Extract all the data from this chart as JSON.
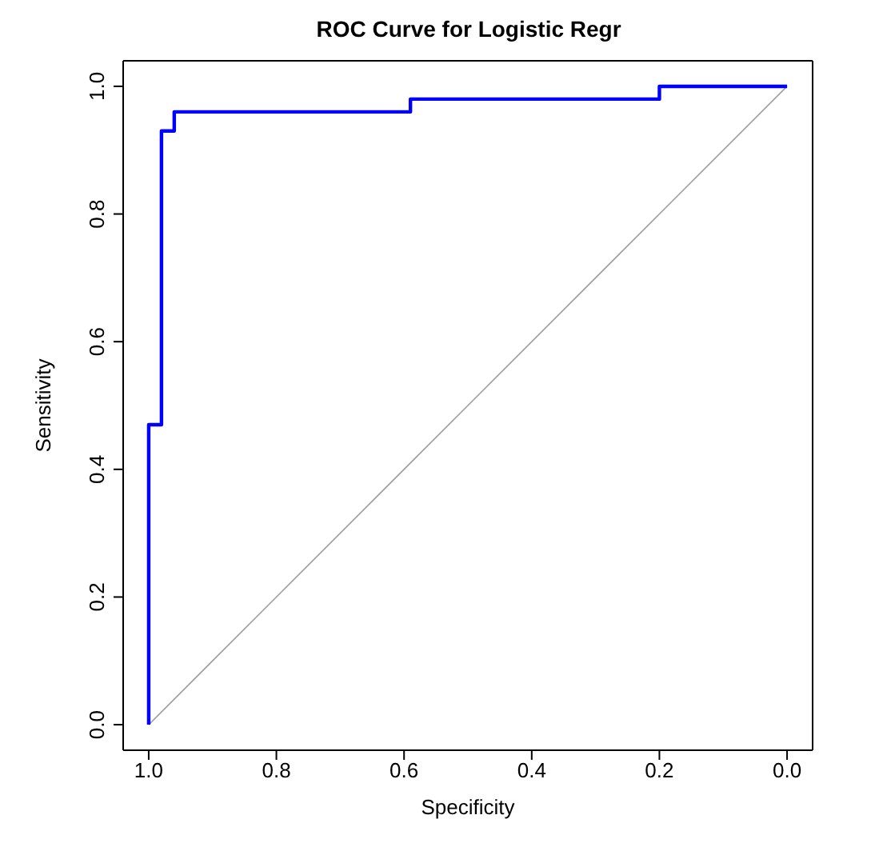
{
  "chart_data": {
    "type": "line",
    "title": "ROC Curve for Logistic Regr",
    "xlabel": "Specificity",
    "ylabel": "Sensitivity",
    "xlim": [
      1.04,
      -0.04
    ],
    "ylim": [
      -0.04,
      1.04
    ],
    "xticks": [
      {
        "value": 1,
        "label": "1.0"
      },
      0.8,
      0.6,
      0.4,
      0.2,
      {
        "value": 0,
        "label": "0.0"
      }
    ],
    "yticks": [
      {
        "value": 0,
        "label": "0.0"
      },
      0.2,
      0.4,
      0.6,
      0.8,
      {
        "value": 1,
        "label": "1.0"
      }
    ],
    "legend": false,
    "marker": "none",
    "line_style": "solid",
    "series": [
      {
        "color": "#0000ff",
        "x": [
          1,
          1,
          0.98,
          0.98,
          0.96,
          0.96,
          0.59,
          0.59,
          0.2,
          0.2,
          0
        ],
        "values": [
          0,
          0.47,
          0.47,
          0.93,
          0.93,
          0.96,
          0.96,
          0.98,
          0.98,
          1,
          1
        ]
      },
      {
        "color": "#a0a0a0",
        "x": [
          1,
          0
        ],
        "values": [
          0,
          1
        ]
      }
    ]
  }
}
